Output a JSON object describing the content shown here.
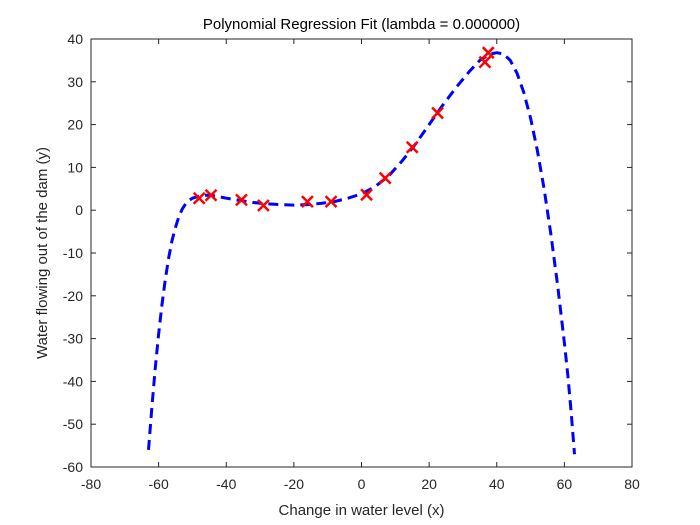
{
  "chart_data": {
    "type": "line",
    "title": "Polynomial Regression Fit (lambda = 0.000000)",
    "xlabel": "Change in water level (x)",
    "ylabel": "Water flowing out of the dam (y)",
    "xlim": [
      -80,
      80
    ],
    "ylim": [
      -60,
      40
    ],
    "xticks": [
      -80,
      -60,
      -40,
      -20,
      0,
      20,
      40,
      60,
      80
    ],
    "yticks": [
      -60,
      -50,
      -40,
      -30,
      -20,
      -10,
      0,
      10,
      20,
      30,
      40
    ],
    "grid": false,
    "series": [
      {
        "kind": "scatter",
        "marker": "x",
        "color": "#ff0000",
        "points": [
          [
            -48,
            2.8
          ],
          [
            -44.5,
            3.5
          ],
          [
            -35.5,
            2.4
          ],
          [
            -29,
            1.1
          ],
          [
            -16,
            2.0
          ],
          [
            -9,
            2.0
          ],
          [
            1.5,
            3.6
          ],
          [
            7,
            7.5
          ],
          [
            15,
            14.7
          ],
          [
            22.5,
            22.7
          ],
          [
            36.5,
            34.6
          ],
          [
            37.5,
            36.8
          ]
        ]
      },
      {
        "kind": "line",
        "style": "dashed",
        "color": "#0000ff",
        "points": [
          [
            -63,
            -56
          ],
          [
            -62,
            -46
          ],
          [
            -61,
            -37
          ],
          [
            -60,
            -29
          ],
          [
            -59,
            -22
          ],
          [
            -58,
            -16
          ],
          [
            -57,
            -11
          ],
          [
            -56,
            -7
          ],
          [
            -55,
            -4
          ],
          [
            -54,
            -1.5
          ],
          [
            -53,
            0.3
          ],
          [
            -52,
            1.5
          ],
          [
            -51,
            2.3
          ],
          [
            -50,
            2.8
          ],
          [
            -48,
            3.3
          ],
          [
            -46,
            3.5
          ],
          [
            -44,
            3.4
          ],
          [
            -42,
            3.1
          ],
          [
            -40,
            2.8
          ],
          [
            -36,
            2.3
          ],
          [
            -32,
            1.8
          ],
          [
            -28,
            1.5
          ],
          [
            -24,
            1.3
          ],
          [
            -20,
            1.2
          ],
          [
            -16,
            1.3
          ],
          [
            -12,
            1.6
          ],
          [
            -8,
            2.0
          ],
          [
            -4,
            2.8
          ],
          [
            0,
            3.8
          ],
          [
            4,
            5.5
          ],
          [
            8,
            8.0
          ],
          [
            12,
            11.5
          ],
          [
            16,
            15.5
          ],
          [
            20,
            20.0
          ],
          [
            24,
            24.5
          ],
          [
            28,
            28.7
          ],
          [
            32,
            32.5
          ],
          [
            35,
            35.0
          ],
          [
            38,
            36.5
          ],
          [
            40,
            36.8
          ],
          [
            42,
            36.5
          ],
          [
            44,
            35.0
          ],
          [
            46,
            32.0
          ],
          [
            48,
            27.5
          ],
          [
            50,
            21.5
          ],
          [
            52,
            14.0
          ],
          [
            54,
            5.0
          ],
          [
            56,
            -5.5
          ],
          [
            58,
            -17.5
          ],
          [
            60,
            -31.0
          ],
          [
            61,
            -38.5
          ],
          [
            62,
            -47.0
          ],
          [
            62.5,
            -52.0
          ],
          [
            63,
            -57.0
          ]
        ]
      }
    ]
  }
}
